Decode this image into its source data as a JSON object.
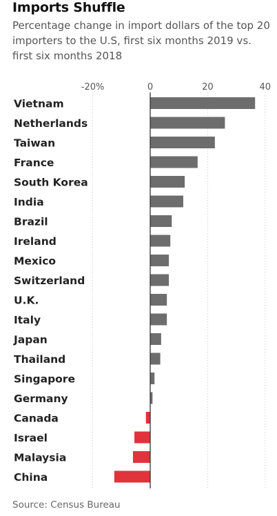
{
  "header": {
    "title": "Imports Shuffle",
    "subtitle": "Percentage change in import dollars of the top 20 importers to the U.S, first six months 2019 vs. first six months 2018"
  },
  "footer": {
    "source": "Source: Census Bureau"
  },
  "colors": {
    "positive": "#6d6d6d",
    "negative": "#e0333c",
    "axis": "#333333",
    "grid": "#d3d3d3"
  },
  "chart_data": {
    "type": "bar",
    "orientation": "horizontal",
    "title": "Imports Shuffle",
    "subtitle": "Percentage change in import dollars of the top 20 importers to the U.S, first six months 2019 vs. first six months 2018",
    "categories": [
      "Vietnam",
      "Netherlands",
      "Taiwan",
      "France",
      "South Korea",
      "India",
      "Brazil",
      "Ireland",
      "Mexico",
      "Switzerland",
      "U.K.",
      "Italy",
      "Japan",
      "Thailand",
      "Singapore",
      "Germany",
      "Canada",
      "Israel",
      "Malaysia",
      "China"
    ],
    "values": [
      36.5,
      26.0,
      22.5,
      16.5,
      12.0,
      11.5,
      7.5,
      7.0,
      6.5,
      6.5,
      5.8,
      5.8,
      3.8,
      3.5,
      1.5,
      0.8,
      -1.5,
      -5.5,
      -6.0,
      -12.5
    ],
    "xlim": [
      -20,
      40
    ],
    "xticks": [
      -20,
      0,
      20,
      40
    ],
    "xtick_labels": [
      "-20%",
      "0",
      "20",
      "40"
    ],
    "grid": true,
    "source": "Source: Census Bureau"
  }
}
